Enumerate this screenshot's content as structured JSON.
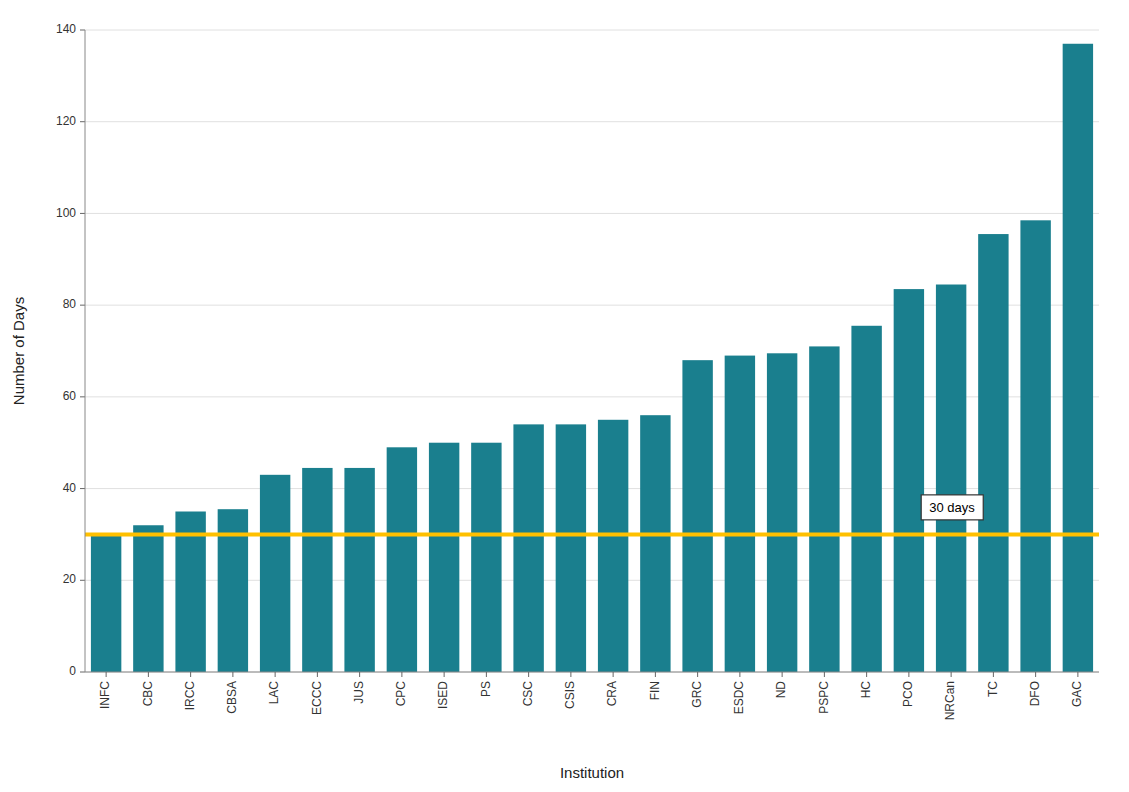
{
  "chart_data": {
    "type": "bar",
    "categories": [
      "INFC",
      "CBC",
      "IRCC",
      "CBSA",
      "LAC",
      "ECCC",
      "JUS",
      "CPC",
      "ISED",
      "PS",
      "CSC",
      "CSIS",
      "CRA",
      "FIN",
      "GRC",
      "ESDC",
      "ND",
      "PSPC",
      "HC",
      "PCO",
      "NRCan",
      "TC",
      "DFO",
      "GAC"
    ],
    "values": [
      30,
      32,
      35,
      35.5,
      43,
      44.5,
      44.5,
      49,
      50,
      50,
      54,
      54,
      55,
      56,
      68,
      69,
      69.5,
      71,
      75.5,
      83.5,
      84.5,
      95.5,
      98.5,
      137
    ],
    "color": "#1a7f8e",
    "xlabel": "Institution",
    "ylabel": "Number of Days",
    "ylim": [
      0,
      140
    ],
    "yticks": [
      0,
      20,
      40,
      60,
      80,
      100,
      120,
      140
    ],
    "grid": true,
    "reference_lines": [
      {
        "value": 30,
        "label": "30 days",
        "color": "#FFC000"
      }
    ]
  }
}
